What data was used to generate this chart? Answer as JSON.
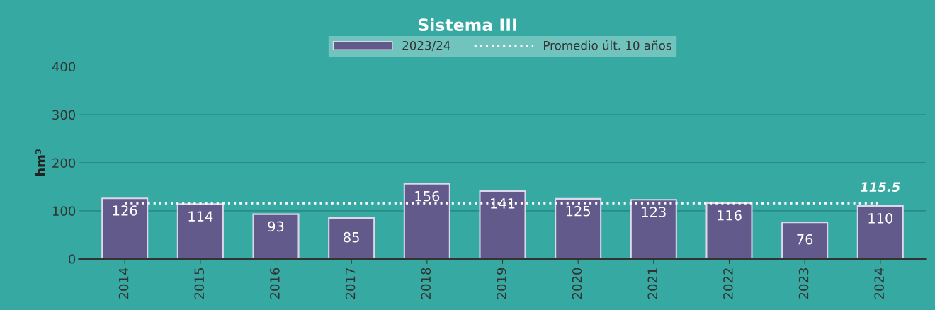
{
  "chart_data": {
    "type": "bar",
    "title": "Sistema III",
    "ylabel": "hm³",
    "categories": [
      "2014",
      "2015",
      "2016",
      "2017",
      "2018",
      "2019",
      "2020",
      "2021",
      "2022",
      "2023",
      "2024"
    ],
    "series": [
      {
        "name": "2023/24",
        "color": "#625a8a",
        "values": [
          126,
          114,
          93,
          85,
          156,
          141,
          125,
          123,
          116,
          76,
          110
        ],
        "value_labels": [
          "126",
          "114",
          "93",
          "85",
          "156",
          "141",
          "125",
          "123",
          "116",
          "76",
          "110"
        ]
      },
      {
        "name": "Promedio últ. 10 años",
        "type": "line",
        "color": "#ffffff",
        "line_style": "dotted",
        "marker": "none",
        "values": [
          115.5,
          115.5,
          115.5,
          115.5,
          115.5,
          115.5,
          115.5,
          115.5,
          115.5,
          115.5,
          115.5
        ]
      }
    ],
    "annotations": [
      {
        "text": "115.5",
        "x": "2024",
        "y": 115.5
      }
    ],
    "ylim": [
      0,
      400
    ],
    "yticks": [
      0,
      100,
      200,
      300,
      400
    ],
    "grid": "y",
    "legend": "top"
  }
}
